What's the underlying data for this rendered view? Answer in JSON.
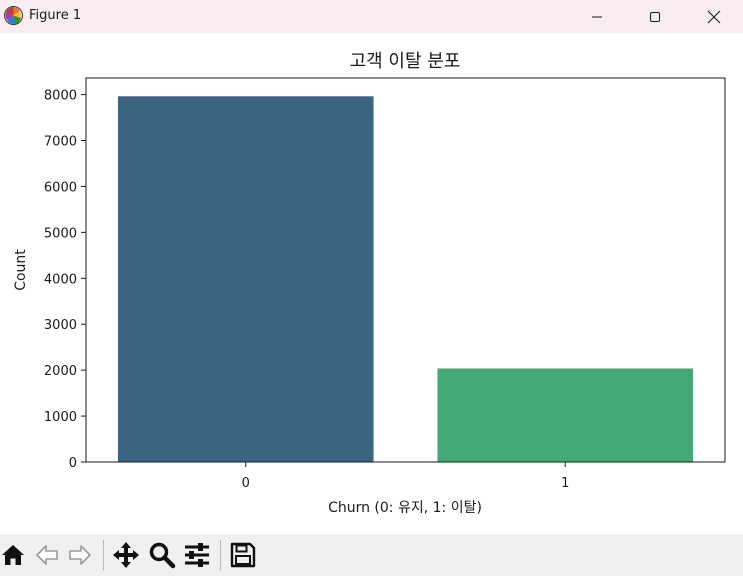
{
  "window": {
    "title": "Figure 1",
    "controls": [
      "minimize",
      "maximize",
      "close"
    ]
  },
  "toolbar": {
    "buttons": [
      "home-icon",
      "back-icon",
      "forward-icon",
      "pan-icon",
      "zoom-icon",
      "configure-subplots-icon",
      "save-icon"
    ]
  },
  "chart_data": {
    "type": "bar",
    "title": "고객 이탈 분포",
    "xlabel": "Churn (0: 유지, 1: 이탈)",
    "ylabel": "Count",
    "categories": [
      "0",
      "1"
    ],
    "values": [
      7963,
      2037
    ],
    "colors": [
      "#3b6481",
      "#44a977"
    ],
    "ylim": [
      0,
      8361
    ],
    "yticks": [
      0,
      1000,
      2000,
      3000,
      4000,
      5000,
      6000,
      7000,
      8000
    ],
    "grid": false,
    "legend": "none"
  }
}
